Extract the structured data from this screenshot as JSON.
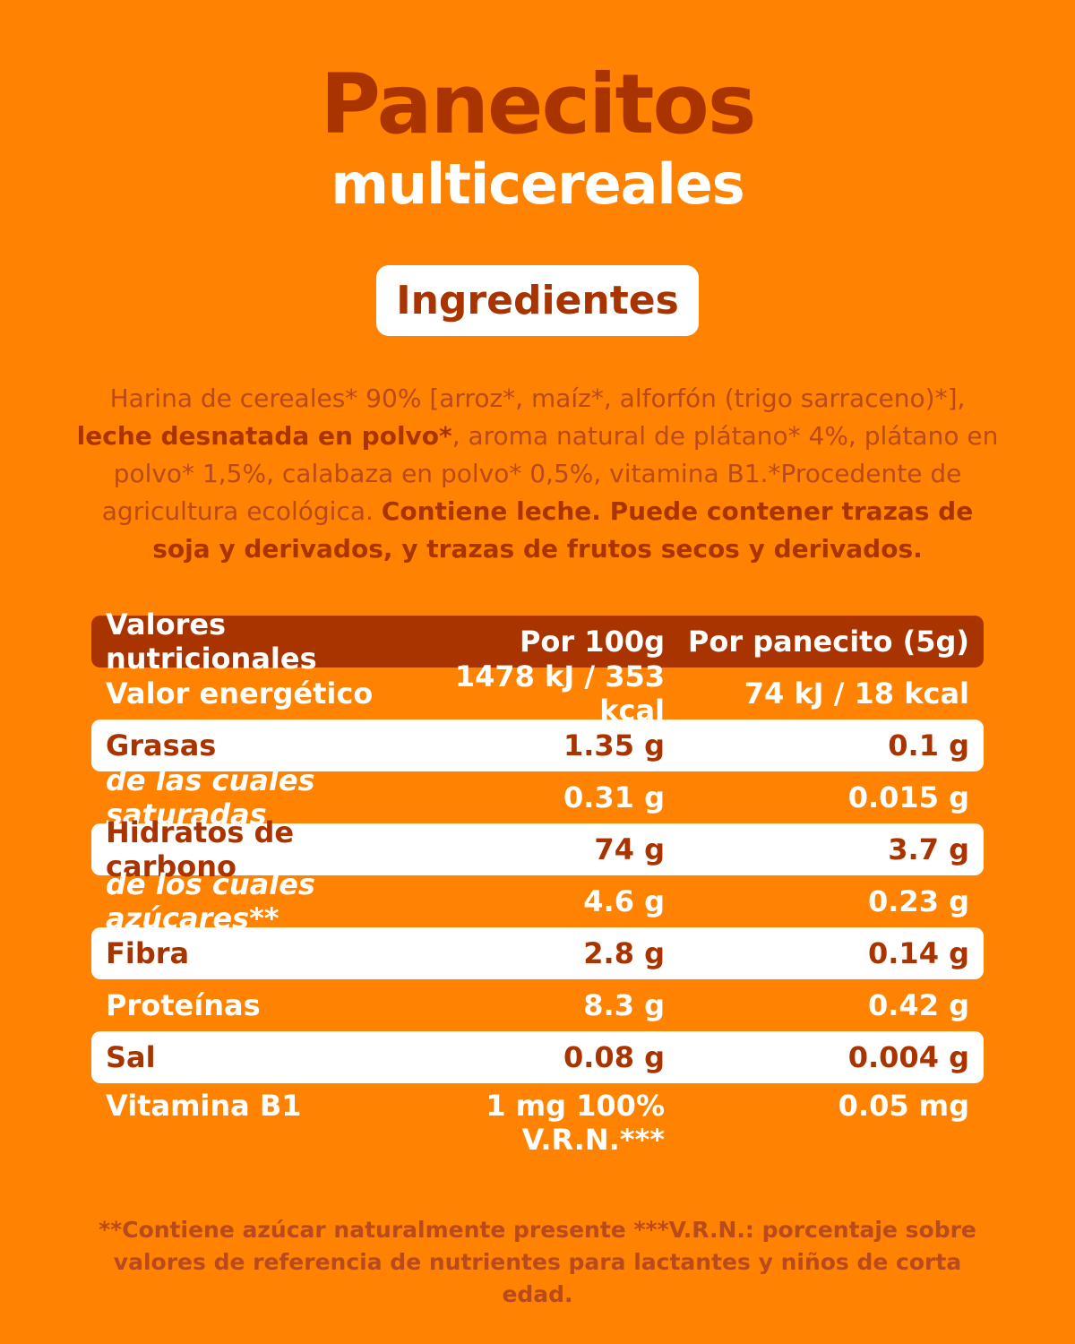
{
  "header": {
    "title": "Panecitos",
    "subtitle": "multicereales"
  },
  "ingredients": {
    "heading": "Ingredientes",
    "segments": [
      {
        "text": "Harina de cereales* 90%  [arroz*, maíz*, alforfón (trigo sarraceno)*], ",
        "bold": false
      },
      {
        "text": "leche desnatada en polvo*",
        "bold": true
      },
      {
        "text": ", aroma natural de plátano* 4%, plátano en polvo* 1,5%, calabaza en polvo* 0,5%, vitamina B1.*Procedente de agricultura ecológica. ",
        "bold": false
      },
      {
        "text": "Contiene leche. Puede contener trazas de soja y derivados, y trazas de frutos secos y derivados.",
        "bold": true
      }
    ]
  },
  "table": {
    "header": [
      "Valores nutricionales",
      "Por 100g",
      "Por panecito (5g)"
    ],
    "rows": [
      [
        "Valor energético",
        "1478 kJ / 353 kcal",
        "74 kJ / 18 kcal"
      ],
      [
        "Grasas",
        "1.35 g",
        "0.1 g"
      ],
      [
        "de las cuales saturadas",
        "0.31 g",
        "0.015 g"
      ],
      [
        "Hidratos de carbono",
        "74 g",
        "3.7 g"
      ],
      [
        "de los cuales azúcares**",
        "4.6 g",
        "0.23 g"
      ],
      [
        "Fibra",
        "2.8 g",
        "0.14 g"
      ],
      [
        "Proteínas",
        "8.3 g",
        "0.42 g"
      ],
      [
        "Sal",
        "0.08 g",
        "0.004 g"
      ],
      [
        "Vitamina B1",
        "1 mg 100% V.R.N.***",
        "0.05 mg"
      ]
    ]
  },
  "footnote": "**Contiene azúcar naturalmente presente ***V.R.N.: porcentaje sobre valores de referencia de nutrientes para lactantes y niños de corta edad."
}
